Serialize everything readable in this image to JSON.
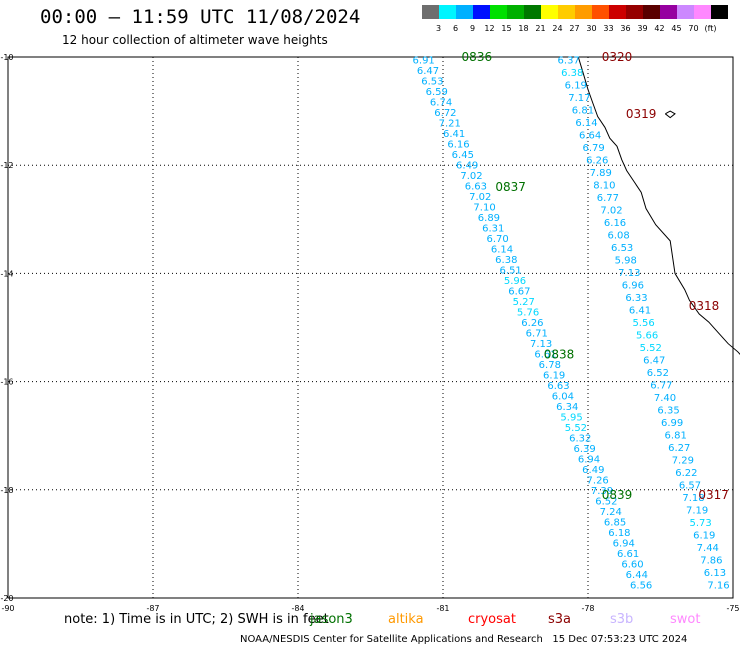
{
  "header": {
    "title": "00:00 – 11:59 UTC 11/08/2024",
    "subtitle": "12 hour collection of altimeter wave heights"
  },
  "colorbar": {
    "colors": [
      "#6e6e6e",
      "#00f5ff",
      "#00b0ff",
      "#0010ff",
      "#00e000",
      "#00b000",
      "#007800",
      "#ffff00",
      "#ffcc00",
      "#ff9c00",
      "#ff5000",
      "#cc0000",
      "#960000",
      "#5a0000",
      "#9600a0",
      "#cc88ff",
      "#ff88ff",
      "#000000"
    ],
    "labels": [
      "3",
      "6",
      "9",
      "12",
      "15",
      "18",
      "21",
      "24",
      "27",
      "30",
      "33",
      "36",
      "39",
      "42",
      "45",
      "70",
      "(ft)"
    ]
  },
  "axes": {
    "x_labels": [
      "-90",
      "-87",
      "-84",
      "-81",
      "-78",
      "-75"
    ],
    "y_labels": [
      "-10",
      "-12",
      "-14",
      "-16",
      "-18",
      "-20"
    ],
    "xlim": [
      -90,
      -75
    ],
    "ylim": [
      -20,
      -10
    ]
  },
  "note": {
    "prefix": "note: 1) Time is in UTC; 2) SWH is in feet",
    "missions": [
      {
        "name": "jason3",
        "color": "#007000"
      },
      {
        "name": "altika",
        "color": "#ff9900"
      },
      {
        "name": "cryosat",
        "color": "#ff0000"
      },
      {
        "name": "s3a",
        "color": "#8b0000"
      },
      {
        "name": "s3b",
        "color": "#c8b4ff"
      },
      {
        "name": "swot",
        "color": "#ff88ff"
      }
    ]
  },
  "footer": {
    "credit": "NOAA/NESDIS Center for Satellite Applications and Research",
    "timestamp": "15 Dec 07:53:23 UTC 2024"
  },
  "tracks": [
    {
      "name": "jason3-pass",
      "time_labels": [
        {
          "text": "0836",
          "lon": -80.3,
          "lat": -10.0,
          "color": "#007000"
        },
        {
          "text": "0837",
          "lon": -79.6,
          "lat": -12.4,
          "color": "#007000"
        },
        {
          "text": "0838",
          "lon": -78.6,
          "lat": -15.5,
          "color": "#007000"
        },
        {
          "text": "0839",
          "lon": -77.4,
          "lat": -18.1,
          "color": "#007000"
        }
      ],
      "start": {
        "lon": -81.4,
        "lat": -10.05
      },
      "end": {
        "lon": -76.9,
        "lat": -19.75
      },
      "values": [
        "6.91",
        "6.47",
        "6.53",
        "6.59",
        "6.74",
        "6.72",
        "7.21",
        "6.41",
        "6.16",
        "6.45",
        "6.49",
        "7.02",
        "6.63",
        "7.02",
        "7.10",
        "6.89",
        "6.31",
        "6.70",
        "6.14",
        "6.38",
        "6.51",
        "5.96",
        "6.67",
        "5.27",
        "5.76",
        "6.26",
        "6.71",
        "7.13",
        "6.61",
        "6.78",
        "6.19",
        "6.63",
        "6.04",
        "6.34",
        "5.95",
        "5.52",
        "6.32",
        "6.39",
        "6.94",
        "6.49",
        "7.26",
        "7.39",
        "6.52",
        "7.24",
        "6.85",
        "6.18",
        "6.94",
        "6.61",
        "6.60",
        "6.44",
        "6.56"
      ],
      "colors": [
        "#00b0ff",
        "#00b0ff",
        "#00b0ff",
        "#00b0ff",
        "#00b0ff",
        "#00b0ff",
        "#00b0ff",
        "#00b0ff",
        "#00b0ff",
        "#00b0ff",
        "#00b0ff",
        "#00b0ff",
        "#00b0ff",
        "#00b0ff",
        "#00b0ff",
        "#00b0ff",
        "#00b0ff",
        "#00b0ff",
        "#00b0ff",
        "#00b0ff",
        "#00b0ff",
        "#00d8ff",
        "#00b0ff",
        "#00d8ff",
        "#00d8ff",
        "#00b0ff",
        "#00b0ff",
        "#00b0ff",
        "#00b0ff",
        "#00b0ff",
        "#00b0ff",
        "#00b0ff",
        "#00b0ff",
        "#00b0ff",
        "#00d8ff",
        "#00d8ff",
        "#00b0ff",
        "#00b0ff",
        "#00b0ff",
        "#00b0ff",
        "#00b0ff",
        "#00b0ff",
        "#00b0ff",
        "#00b0ff",
        "#00b0ff",
        "#00b0ff",
        "#00b0ff",
        "#00b0ff",
        "#00b0ff",
        "#00b0ff",
        "#00b0ff"
      ]
    },
    {
      "name": "s3a-pass",
      "time_labels": [
        {
          "text": "0320",
          "lon": -77.4,
          "lat": -10.0,
          "color": "#8b0000"
        },
        {
          "text": "0319",
          "lon": -76.9,
          "lat": -11.05,
          "color": "#8b0000"
        },
        {
          "text": "0318",
          "lon": -75.6,
          "lat": -14.6,
          "color": "#8b0000"
        },
        {
          "text": "0317",
          "lon": -75.4,
          "lat": -18.1,
          "color": "#8b0000"
        }
      ],
      "start": {
        "lon": -78.4,
        "lat": -10.05
      },
      "end": {
        "lon": -75.3,
        "lat": -19.75
      },
      "values": [
        "6.37",
        "6.38",
        "6.19",
        "7.17",
        "6.81",
        "6.14",
        "6.64",
        "6.79",
        "6.26",
        "7.89",
        "8.10",
        "6.77",
        "7.02",
        "6.16",
        "6.08",
        "6.53",
        "5.98",
        "7.13",
        "6.96",
        "6.33",
        "6.41",
        "5.56",
        "5.66",
        "5.52",
        "6.47",
        "6.52",
        "6.77",
        "7.40",
        "6.35",
        "6.99",
        "6.81",
        "6.27",
        "7.29",
        "6.22",
        "6.57",
        "7.18",
        "7.19",
        "5.73",
        "6.19",
        "7.44",
        "7.86",
        "6.13",
        "7.16"
      ],
      "colors": [
        "#00b0ff",
        "#00d8ff",
        "#00b0ff",
        "#00b0ff",
        "#00b0ff",
        "#00b0ff",
        "#00b0ff",
        "#00b0ff",
        "#00b0ff",
        "#00b0ff",
        "#00b0ff",
        "#00b0ff",
        "#00b0ff",
        "#00b0ff",
        "#00b0ff",
        "#00b0ff",
        "#00b0ff",
        "#00b0ff",
        "#00b0ff",
        "#00b0ff",
        "#00b0ff",
        "#00d8ff",
        "#00d8ff",
        "#00d8ff",
        "#00b0ff",
        "#00b0ff",
        "#00b0ff",
        "#00b0ff",
        "#00b0ff",
        "#00b0ff",
        "#00b0ff",
        "#00b0ff",
        "#00b0ff",
        "#00b0ff",
        "#00b0ff",
        "#00b0ff",
        "#00b0ff",
        "#00d8ff",
        "#00b0ff",
        "#00b0ff",
        "#00b0ff",
        "#00b0ff",
        "#00b0ff"
      ]
    }
  ],
  "coastline": [
    [
      -78.2,
      -10.0
    ],
    [
      -78.1,
      -10.3
    ],
    [
      -78.0,
      -10.6
    ],
    [
      -77.9,
      -10.85
    ],
    [
      -77.8,
      -11.1
    ],
    [
      -77.65,
      -11.3
    ],
    [
      -77.55,
      -11.5
    ],
    [
      -77.4,
      -11.65
    ],
    [
      -77.3,
      -11.9
    ],
    [
      -77.2,
      -12.1
    ],
    [
      -77.05,
      -12.3
    ],
    [
      -76.9,
      -12.5
    ],
    [
      -76.8,
      -12.8
    ],
    [
      -76.6,
      -13.1
    ],
    [
      -76.3,
      -13.4
    ],
    [
      -76.25,
      -13.7
    ],
    [
      -76.2,
      -14.0
    ],
    [
      -76.0,
      -14.3
    ],
    [
      -75.9,
      -14.5
    ],
    [
      -75.7,
      -14.75
    ],
    [
      -75.5,
      -14.9
    ],
    [
      -75.3,
      -15.1
    ],
    [
      -75.1,
      -15.3
    ],
    [
      -74.9,
      -15.45
    ],
    [
      -74.85,
      -15.5
    ]
  ],
  "islands": [
    [
      [
        -76.4,
        -11.05
      ],
      [
        -76.3,
        -11.0
      ],
      [
        -76.2,
        -11.05
      ],
      [
        -76.3,
        -11.12
      ],
      [
        -76.4,
        -11.05
      ]
    ]
  ]
}
